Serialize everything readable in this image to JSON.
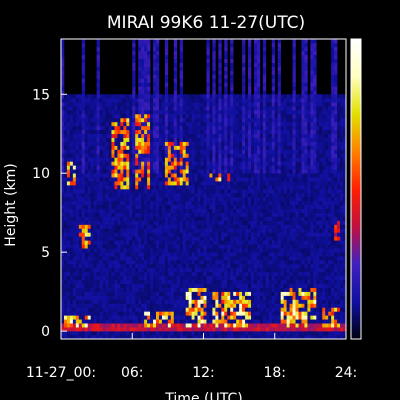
{
  "chart_data": {
    "type": "heatmap",
    "title": "MIRAI 99K6 11-27(UTC)",
    "xlabel": "Time (UTC)",
    "ylabel": "Height (km)",
    "x_ticks": [
      {
        "value": 0,
        "label": "11-27_00:"
      },
      {
        "value": 6,
        "label": "06:"
      },
      {
        "value": 12,
        "label": "12:"
      },
      {
        "value": 18,
        "label": "18:"
      },
      {
        "value": 24,
        "label": "24:"
      }
    ],
    "y_ticks": [
      {
        "value": 0,
        "label": "0"
      },
      {
        "value": 5,
        "label": "5"
      },
      {
        "value": 10,
        "label": "10"
      },
      {
        "value": 15,
        "label": "15"
      }
    ],
    "xlim": [
      0,
      24
    ],
    "ylim": [
      -0.5,
      18.5
    ],
    "background_color": "#000000",
    "colormap": [
      "#000010",
      "#1010a0",
      "#4020c0",
      "#c01040",
      "#ff2000",
      "#ff8000",
      "#e0e000",
      "#ffffc0",
      "#ffffff"
    ],
    "features": [
      {
        "name": "surface echo",
        "t_start": 0.0,
        "t_end": 24.0,
        "h_start": 0.0,
        "h_end": 0.6,
        "intensity": 0.45
      },
      {
        "name": "low cloud",
        "t_start": 0.2,
        "t_end": 2.5,
        "h_start": 0.2,
        "h_end": 1.0,
        "intensity": 0.95
      },
      {
        "name": "low cloud",
        "t_start": 7.0,
        "t_end": 9.5,
        "h_start": 0.2,
        "h_end": 1.2,
        "intensity": 0.95
      },
      {
        "name": "low cloud",
        "t_start": 10.5,
        "t_end": 12.3,
        "h_start": 0.2,
        "h_end": 2.8,
        "intensity": 0.95
      },
      {
        "name": "low cloud",
        "t_start": 12.8,
        "t_end": 16.0,
        "h_start": 0.2,
        "h_end": 2.5,
        "intensity": 0.9
      },
      {
        "name": "low cloud",
        "t_start": 18.5,
        "t_end": 21.5,
        "h_start": 0.2,
        "h_end": 2.8,
        "intensity": 0.95
      },
      {
        "name": "low cloud",
        "t_start": 22.0,
        "t_end": 23.5,
        "h_start": 0.2,
        "h_end": 1.5,
        "intensity": 0.85
      },
      {
        "name": "mid cloud",
        "t_start": 1.6,
        "t_end": 2.4,
        "h_start": 5.3,
        "h_end": 6.7,
        "intensity": 0.85
      },
      {
        "name": "mid cloud",
        "t_start": 22.9,
        "t_end": 23.4,
        "h_start": 5.8,
        "h_end": 7.0,
        "intensity": 0.55
      },
      {
        "name": "upper cloud",
        "t_start": 0.5,
        "t_end": 1.3,
        "h_start": 9.3,
        "h_end": 10.8,
        "intensity": 0.9
      },
      {
        "name": "upper cloud",
        "t_start": 4.2,
        "t_end": 5.8,
        "h_start": 9.0,
        "h_end": 13.5,
        "intensity": 0.8
      },
      {
        "name": "upper cloud",
        "t_start": 6.2,
        "t_end": 7.6,
        "h_start": 9.0,
        "h_end": 13.8,
        "intensity": 0.8
      },
      {
        "name": "upper cloud",
        "t_start": 8.7,
        "t_end": 10.8,
        "h_start": 9.2,
        "h_end": 12.0,
        "intensity": 0.8
      },
      {
        "name": "upper cloud",
        "t_start": 12.6,
        "t_end": 13.4,
        "h_start": 9.4,
        "h_end": 10.1,
        "intensity": 1.0
      },
      {
        "name": "upper cloud",
        "t_start": 13.8,
        "t_end": 14.3,
        "h_start": 9.5,
        "h_end": 10.0,
        "intensity": 0.7
      },
      {
        "name": "noise column",
        "t_start": 0.0,
        "t_end": 24.0,
        "h_start": 10.0,
        "h_end": 18.5,
        "intensity": 0.2
      }
    ],
    "grid": false,
    "colorbar": "right"
  }
}
